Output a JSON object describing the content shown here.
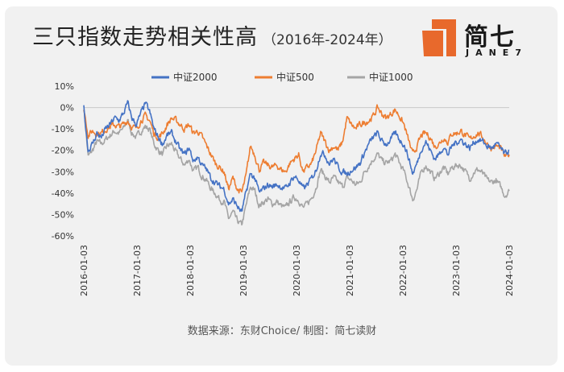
{
  "header": {
    "title": "三只指数走势相关性高",
    "subtitle": "（2016年-2024年）"
  },
  "logo": {
    "name_cn": "简七",
    "name_en": "JANE7",
    "accent": "#e8692c"
  },
  "source": "数据来源：东财Choice/ 制图：简七读财",
  "colors": {
    "zz2000": "#4472c4",
    "zz500": "#ed7d31",
    "zz1000": "#a5a5a5",
    "zero_line": "#c8c8c8"
  },
  "chart_data": {
    "type": "line",
    "title": "三只指数走势相关性高",
    "xlabel": "",
    "ylabel": "",
    "ylim": [
      -60,
      10
    ],
    "yticks": [
      "10%",
      "0%",
      "-10%",
      "-20%",
      "-30%",
      "-40%",
      "-50%",
      "-60%"
    ],
    "ytick_values": [
      10,
      0,
      -10,
      -20,
      -30,
      -40,
      -50,
      -60
    ],
    "x_ticks": [
      "2016-01-03",
      "2017-01-03",
      "2018-01-03",
      "2019-01-03",
      "2020-01-03",
      "2021-01-03",
      "2022-01-03",
      "2023-01-03",
      "2024-01-03"
    ],
    "legend_position": "top",
    "grid": false,
    "x": [
      "2016-01",
      "2016-02",
      "2016-03",
      "2016-04",
      "2016-05",
      "2016-06",
      "2016-07",
      "2016-08",
      "2016-09",
      "2016-10",
      "2016-11",
      "2016-12",
      "2017-01",
      "2017-02",
      "2017-03",
      "2017-04",
      "2017-05",
      "2017-06",
      "2017-07",
      "2017-08",
      "2017-09",
      "2017-10",
      "2017-11",
      "2017-12",
      "2018-01",
      "2018-02",
      "2018-03",
      "2018-04",
      "2018-05",
      "2018-06",
      "2018-07",
      "2018-08",
      "2018-09",
      "2018-10",
      "2018-11",
      "2018-12",
      "2019-01",
      "2019-02",
      "2019-03",
      "2019-04",
      "2019-05",
      "2019-06",
      "2019-07",
      "2019-08",
      "2019-09",
      "2019-10",
      "2019-11",
      "2019-12",
      "2020-01",
      "2020-02",
      "2020-03",
      "2020-04",
      "2020-05",
      "2020-06",
      "2020-07",
      "2020-08",
      "2020-09",
      "2020-10",
      "2020-11",
      "2020-12",
      "2021-01",
      "2021-02",
      "2021-03",
      "2021-04",
      "2021-05",
      "2021-06",
      "2021-07",
      "2021-08",
      "2021-09",
      "2021-10",
      "2021-11",
      "2021-12",
      "2022-01",
      "2022-02",
      "2022-03",
      "2022-04",
      "2022-05",
      "2022-06",
      "2022-07",
      "2022-08",
      "2022-09",
      "2022-10",
      "2022-11",
      "2022-12",
      "2023-01",
      "2023-02",
      "2023-03",
      "2023-04",
      "2023-05",
      "2023-06",
      "2023-07",
      "2023-08",
      "2023-09",
      "2023-10",
      "2023-11",
      "2023-12",
      "2024-01",
      "2024-02"
    ],
    "series": [
      {
        "name": "中证2000",
        "color": "#4472c4",
        "values": [
          0,
          -20,
          -17,
          -12,
          -14,
          -10,
          -8,
          -5,
          -6,
          -3,
          2,
          -5,
          -8,
          -3,
          2,
          -2,
          -10,
          -14,
          -17,
          -13,
          -12,
          -16,
          -20,
          -22,
          -19,
          -25,
          -23,
          -27,
          -29,
          -33,
          -35,
          -37,
          -38,
          -45,
          -43,
          -46,
          -49,
          -40,
          -31,
          -33,
          -40,
          -38,
          -36,
          -37,
          -36,
          -37,
          -38,
          -35,
          -32,
          -34,
          -38,
          -36,
          -33,
          -29,
          -21,
          -22,
          -26,
          -24,
          -28,
          -30,
          -31,
          -29,
          -28,
          -26,
          -21,
          -17,
          -14,
          -12,
          -16,
          -17,
          -15,
          -12,
          -15,
          -17,
          -23,
          -31,
          -26,
          -19,
          -16,
          -20,
          -24,
          -22,
          -18,
          -22,
          -18,
          -16,
          -15,
          -17,
          -19,
          -16,
          -15,
          -16,
          -18,
          -19,
          -17,
          -19,
          -22,
          -20
        ]
      },
      {
        "name": "中证500",
        "color": "#ed7d31",
        "values": [
          0,
          -13,
          -11,
          -12,
          -12,
          -10,
          -9,
          -8,
          -9,
          -8,
          -6,
          -9,
          -10,
          -6,
          -4,
          -6,
          -12,
          -14,
          -12,
          -8,
          -5,
          -6,
          -8,
          -10,
          -8,
          -12,
          -11,
          -14,
          -18,
          -22,
          -26,
          -28,
          -30,
          -38,
          -33,
          -38,
          -40,
          -32,
          -18,
          -22,
          -29,
          -26,
          -27,
          -28,
          -27,
          -29,
          -30,
          -26,
          -24,
          -22,
          -30,
          -28,
          -26,
          -20,
          -12,
          -16,
          -20,
          -18,
          -20,
          -16,
          -5,
          -8,
          -10,
          -8,
          -7,
          -6,
          -4,
          0,
          -3,
          -5,
          -3,
          -1,
          -4,
          -8,
          -15,
          -22,
          -18,
          -13,
          -12,
          -14,
          -18,
          -17,
          -14,
          -16,
          -12,
          -12,
          -11,
          -13,
          -15,
          -13,
          -12,
          -14,
          -17,
          -19,
          -18,
          -19,
          -23,
          -22
        ]
      },
      {
        "name": "中证1000",
        "color": "#a5a5a5",
        "values": [
          0,
          -23,
          -20,
          -16,
          -17,
          -15,
          -13,
          -11,
          -12,
          -10,
          -6,
          -12,
          -14,
          -11,
          -9,
          -10,
          -17,
          -20,
          -22,
          -18,
          -17,
          -21,
          -24,
          -27,
          -24,
          -30,
          -28,
          -32,
          -34,
          -38,
          -40,
          -43,
          -44,
          -52,
          -49,
          -53,
          -55,
          -46,
          -37,
          -39,
          -46,
          -44,
          -43,
          -45,
          -44,
          -46,
          -47,
          -44,
          -42,
          -43,
          -47,
          -45,
          -42,
          -37,
          -29,
          -32,
          -35,
          -33,
          -35,
          -37,
          -33,
          -34,
          -36,
          -35,
          -30,
          -27,
          -24,
          -22,
          -25,
          -26,
          -25,
          -22,
          -26,
          -30,
          -36,
          -43,
          -38,
          -30,
          -27,
          -30,
          -33,
          -31,
          -28,
          -31,
          -28,
          -27,
          -27,
          -30,
          -33,
          -30,
          -29,
          -31,
          -34,
          -35,
          -34,
          -37,
          -41,
          -39
        ]
      }
    ]
  }
}
